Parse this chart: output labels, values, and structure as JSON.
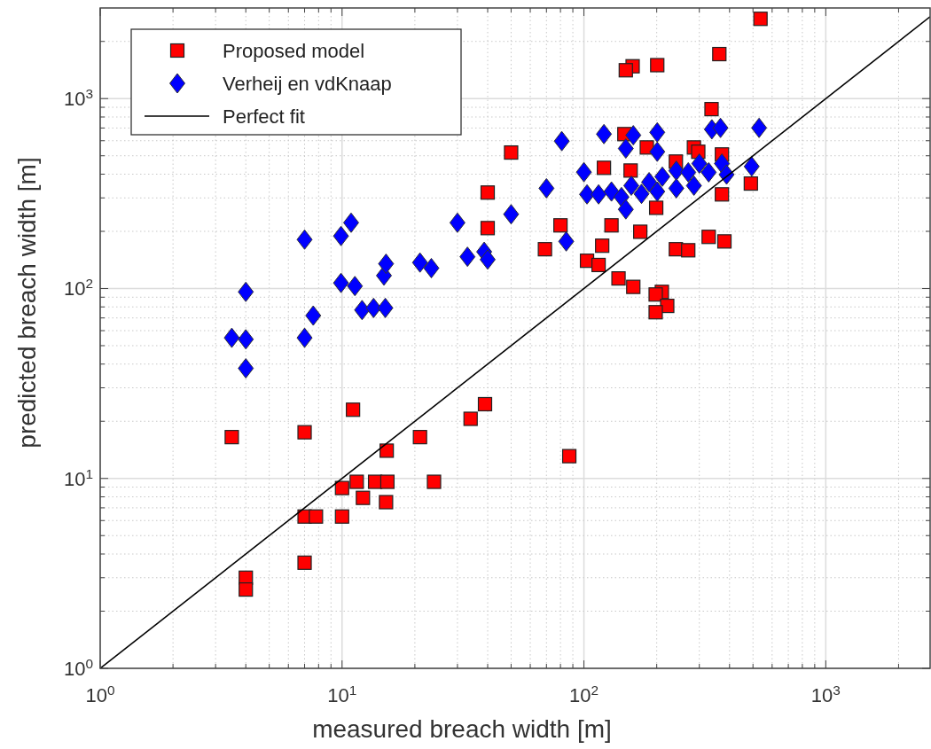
{
  "chart_data": {
    "type": "scatter",
    "xlabel": "measured breach width [m]",
    "ylabel": "predicted breach width [m]",
    "log": "xy",
    "grid": true,
    "legend": "top left",
    "xlim": [
      1,
      2700
    ],
    "ylim": [
      1,
      3000
    ],
    "xticks": [
      {
        "value": 1,
        "label": "10$^{0}$"
      },
      {
        "value": 2,
        "label": null
      },
      {
        "value": 3,
        "label": null
      },
      {
        "value": 4,
        "label": null
      },
      {
        "value": 5,
        "label": null
      },
      {
        "value": 6,
        "label": null
      },
      {
        "value": 7,
        "label": null
      },
      {
        "value": 8,
        "label": null
      },
      {
        "value": 9,
        "label": null
      },
      {
        "value": 10,
        "label": "10$^{1}$"
      },
      {
        "value": 20,
        "label": null
      },
      {
        "value": 30,
        "label": null
      },
      {
        "value": 40,
        "label": null
      },
      {
        "value": 50,
        "label": null
      },
      {
        "value": 60,
        "label": null
      },
      {
        "value": 70,
        "label": null
      },
      {
        "value": 80,
        "label": null
      },
      {
        "value": 90,
        "label": null
      },
      {
        "value": 100,
        "label": "10$^{2}$"
      },
      {
        "value": 200,
        "label": null
      },
      {
        "value": 300,
        "label": null
      },
      {
        "value": 400,
        "label": null
      },
      {
        "value": 500,
        "label": null
      },
      {
        "value": 600,
        "label": null
      },
      {
        "value": 700,
        "label": null
      },
      {
        "value": 800,
        "label": null
      },
      {
        "value": 900,
        "label": null
      },
      {
        "value": 1000,
        "label": "10$^{3}$"
      },
      {
        "value": 2000,
        "label": null
      }
    ],
    "yticks": [
      {
        "value": 1,
        "label": "10$^{0}$"
      },
      {
        "value": 2,
        "label": null
      },
      {
        "value": 3,
        "label": null
      },
      {
        "value": 4,
        "label": null
      },
      {
        "value": 5,
        "label": null
      },
      {
        "value": 6,
        "label": null
      },
      {
        "value": 7,
        "label": null
      },
      {
        "value": 8,
        "label": null
      },
      {
        "value": 9,
        "label": null
      },
      {
        "value": 10,
        "label": "10$^{1}$"
      },
      {
        "value": 20,
        "label": null
      },
      {
        "value": 30,
        "label": null
      },
      {
        "value": 40,
        "label": null
      },
      {
        "value": 50,
        "label": null
      },
      {
        "value": 60,
        "label": null
      },
      {
        "value": 70,
        "label": null
      },
      {
        "value": 80,
        "label": null
      },
      {
        "value": 90,
        "label": null
      },
      {
        "value": 100,
        "label": "10$^{2}$"
      },
      {
        "value": 200,
        "label": null
      },
      {
        "value": 300,
        "label": null
      },
      {
        "value": 400,
        "label": null
      },
      {
        "value": 500,
        "label": null
      },
      {
        "value": 600,
        "label": null
      },
      {
        "value": 700,
        "label": null
      },
      {
        "value": 800,
        "label": null
      },
      {
        "value": 900,
        "label": null
      },
      {
        "value": 1000,
        "label": "10$^{3}$"
      },
      {
        "value": 2000,
        "label": null
      }
    ],
    "series": [
      {
        "name": "Proposed model",
        "marker": "square",
        "color": "#ff0000",
        "x": [
          537,
          363,
          201,
          159,
          149,
          337,
          50,
          40,
          40,
          147,
          182,
          121,
          156,
          240,
          285,
          297,
          372,
          490,
          372,
          199,
          80,
          130,
          69,
          119,
          171,
          103,
          115,
          328,
          381,
          240,
          270,
          139,
          160,
          210,
          198,
          221,
          198,
          3.5,
          7,
          11.1,
          39,
          34,
          21,
          15.3,
          87,
          11.5,
          13.7,
          15.4,
          24,
          10,
          12.2,
          15.2,
          7,
          7.8,
          10,
          7,
          4,
          4
        ],
        "values": [
          2630,
          1715,
          1500,
          1480,
          1410,
          880,
          520,
          320,
          208,
          650,
          553,
          432,
          418,
          466,
          553,
          525,
          508,
          357,
          313,
          266,
          215,
          215,
          161,
          168,
          199,
          140,
          133,
          187,
          177,
          161,
          159,
          113,
          102,
          96,
          93,
          81,
          75,
          16.5,
          17.5,
          23,
          24.6,
          20.6,
          16.5,
          14,
          13.1,
          9.6,
          9.6,
          9.6,
          9.6,
          8.9,
          7.9,
          7.5,
          6.3,
          6.3,
          6.3,
          3.6,
          3,
          2.6
        ]
      },
      {
        "name": "Verheij en vdKnaap",
        "marker": "diamond",
        "color": "#0000ff",
        "x": [
          4,
          3.5,
          4,
          4,
          7,
          7,
          7.6,
          9.9,
          10.9,
          9.9,
          11.3,
          12.1,
          13.5,
          15.1,
          14.9,
          15.2,
          21,
          23.4,
          30,
          33,
          38.7,
          40,
          50,
          70,
          81,
          84.5,
          100,
          121,
          103,
          115,
          130,
          143,
          149,
          157,
          173,
          149,
          160,
          186,
          201,
          201,
          211,
          201,
          241,
          241,
          270,
          285,
          300,
          328,
          338,
          367,
          372,
          389,
          494,
          530
        ],
        "values": [
          96,
          55,
          54,
          38,
          181,
          55,
          72,
          189,
          222,
          107,
          103,
          77,
          79,
          79,
          117,
          135,
          137,
          128,
          222,
          147,
          156,
          142,
          246,
          337,
          597,
          177,
          410,
          650,
          313,
          313,
          324,
          303,
          261,
          348,
          315,
          546,
          641,
          363,
          664,
          525,
          388,
          324,
          417,
          337,
          409,
          348,
          455,
          409,
          689,
          701,
          455,
          398,
          439,
          701
        ]
      },
      {
        "name": "Perfect fit",
        "type": "line",
        "marker": "none",
        "line_style": "solid",
        "color": "#000000",
        "x": [
          1,
          2700
        ],
        "values": [
          1,
          2700
        ]
      }
    ]
  }
}
